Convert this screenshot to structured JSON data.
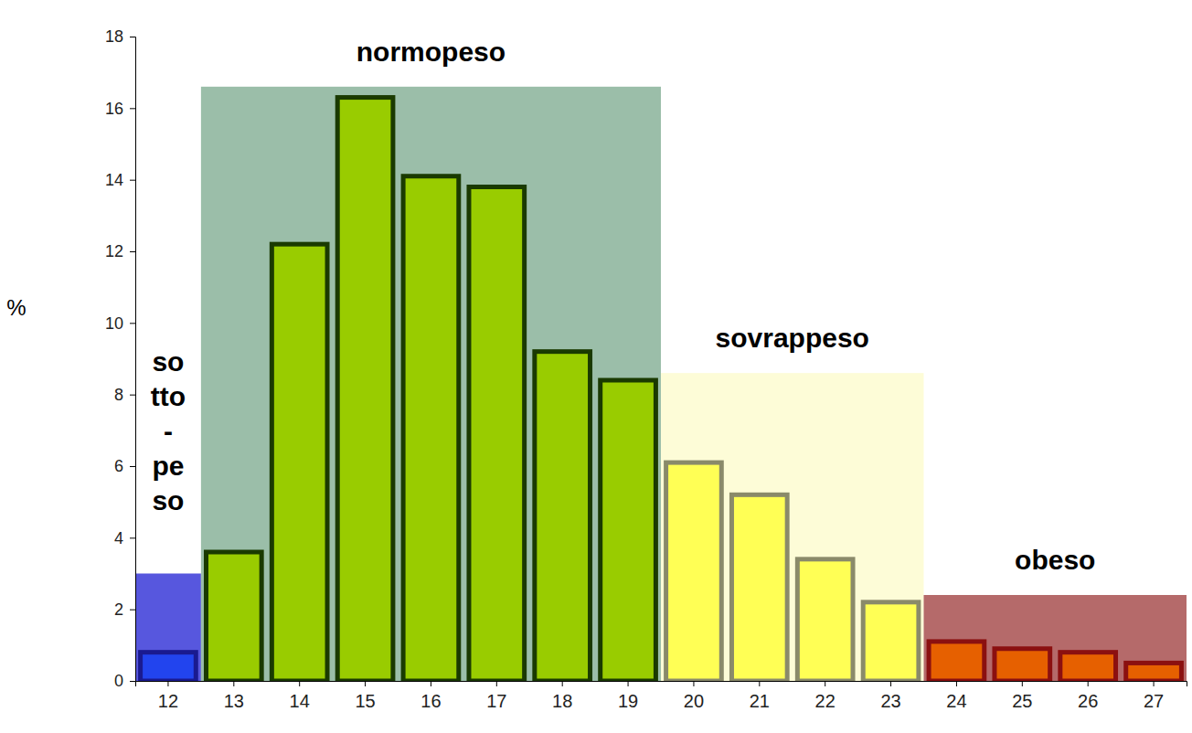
{
  "chart_data": {
    "type": "bar",
    "y_label": "%",
    "categories": [
      "12",
      "13",
      "14",
      "15",
      "16",
      "17",
      "18",
      "19",
      "20",
      "21",
      "22",
      "23",
      "24",
      "25",
      "26",
      "27"
    ],
    "values": [
      0.8,
      3.6,
      12.2,
      16.3,
      14.1,
      13.8,
      9.2,
      8.4,
      6.1,
      5.2,
      3.4,
      2.2,
      1.1,
      0.9,
      0.8,
      0.5
    ],
    "colors": [
      "#2244ee",
      "#99cc00",
      "#99cc00",
      "#99cc00",
      "#99cc00",
      "#99cc00",
      "#99cc00",
      "#99cc00",
      "#ffff55",
      "#ffff55",
      "#ffff55",
      "#ffff55",
      "#e66000",
      "#e66000",
      "#e66000",
      "#e66000"
    ],
    "ylim": [
      0,
      18
    ],
    "yticks": [
      0,
      2,
      4,
      6,
      8,
      10,
      12,
      14,
      16,
      18
    ],
    "grid": false,
    "regions": [
      {
        "label_lines": [
          "so",
          "tto",
          "-",
          "pe",
          "so"
        ],
        "from": "12",
        "to": "12",
        "height": 3.0,
        "color": "#3a3ad8"
      },
      {
        "label_lines": [
          "normopeso"
        ],
        "from": "13",
        "to": "19",
        "height": 16.6,
        "color": "#8ab39a"
      },
      {
        "label_lines": [
          "sovrappeso"
        ],
        "from": "20",
        "to": "23",
        "height": 8.6,
        "color": "#fdfcd0"
      },
      {
        "label_lines": [
          "obeso"
        ],
        "from": "24",
        "to": "27",
        "height": 2.4,
        "color": "#a85050"
      }
    ]
  }
}
